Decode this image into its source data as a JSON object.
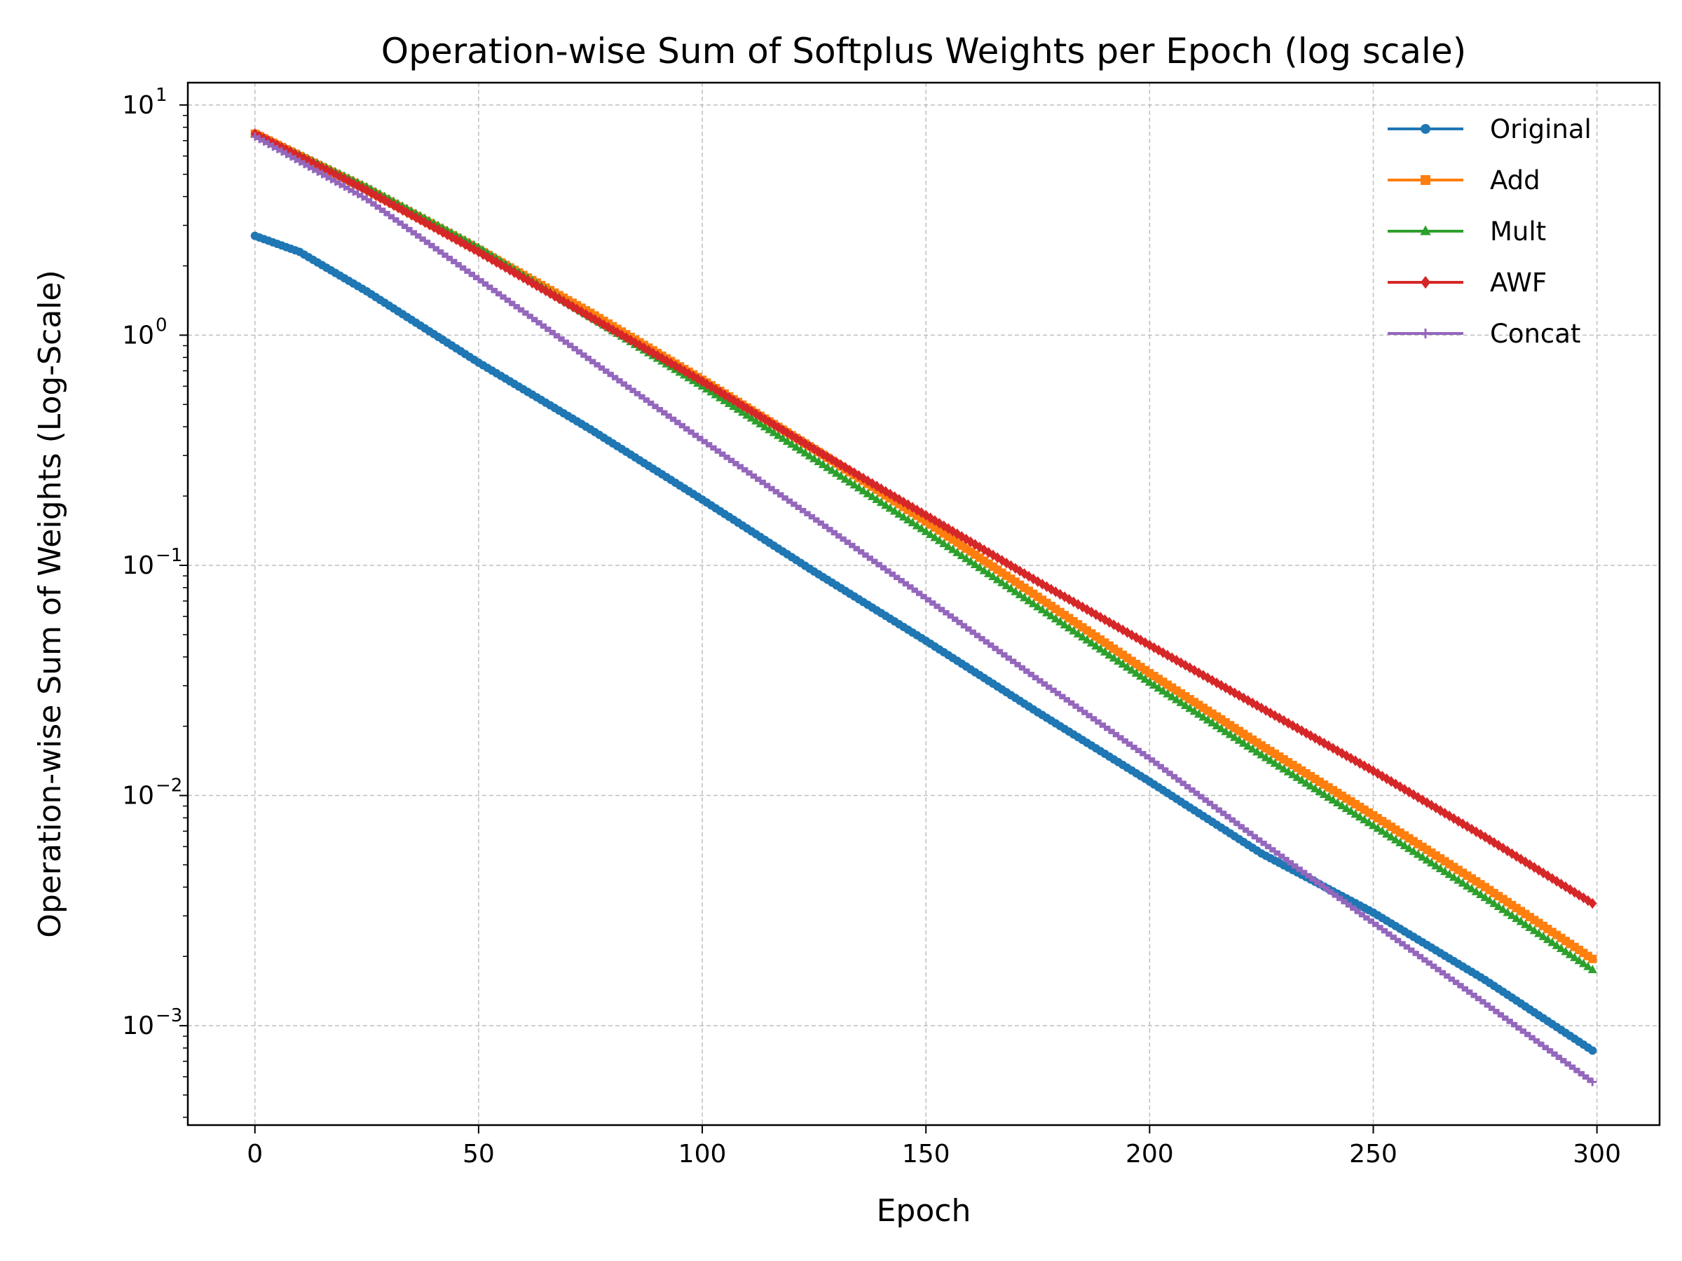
{
  "chart_data": {
    "type": "line",
    "title": "Operation-wise Sum of Softplus Weights per Epoch (log scale)",
    "xlabel": "Epoch",
    "ylabel": "Operation-wise Sum of Weights (Log-Scale)",
    "yscale": "log",
    "xlim": [
      -15,
      314
    ],
    "ylim": [
      0.00037,
      12.5
    ],
    "xticks": [
      0,
      50,
      100,
      150,
      200,
      250,
      300
    ],
    "yticks": [
      {
        "value": 0.001,
        "base": "10",
        "exp": "−3"
      },
      {
        "value": 0.01,
        "base": "10",
        "exp": "−2"
      },
      {
        "value": 0.1,
        "base": "10",
        "exp": "−1"
      },
      {
        "value": 1,
        "base": "10",
        "exp": "0"
      },
      {
        "value": 10,
        "base": "10",
        "exp": "1"
      }
    ],
    "grid": true,
    "legend_position": "top-right",
    "series": [
      {
        "name": "Original",
        "color": "#1f77b4",
        "marker": "circle",
        "points": [
          [
            0,
            2.7
          ],
          [
            10,
            2.3
          ],
          [
            25,
            1.55
          ],
          [
            50,
            0.76
          ],
          [
            75,
            0.39
          ],
          [
            100,
            0.193
          ],
          [
            125,
            0.094
          ],
          [
            150,
            0.047
          ],
          [
            175,
            0.023
          ],
          [
            200,
            0.0115
          ],
          [
            225,
            0.0056
          ],
          [
            250,
            0.0031
          ],
          [
            275,
            0.00158
          ],
          [
            299,
            0.00078
          ]
        ]
      },
      {
        "name": "Add",
        "color": "#ff7f0e",
        "marker": "square",
        "points": [
          [
            0,
            7.5
          ],
          [
            25,
            4.3
          ],
          [
            50,
            2.35
          ],
          [
            75,
            1.25
          ],
          [
            100,
            0.64
          ],
          [
            125,
            0.32
          ],
          [
            150,
            0.155
          ],
          [
            175,
            0.073
          ],
          [
            200,
            0.034
          ],
          [
            225,
            0.0165
          ],
          [
            250,
            0.0082
          ],
          [
            275,
            0.004
          ],
          [
            299,
            0.00195
          ]
        ]
      },
      {
        "name": "Mult",
        "color": "#2ca02c",
        "marker": "triangle",
        "points": [
          [
            0,
            7.5
          ],
          [
            25,
            4.4
          ],
          [
            50,
            2.4
          ],
          [
            75,
            1.2
          ],
          [
            100,
            0.6
          ],
          [
            125,
            0.29
          ],
          [
            150,
            0.14
          ],
          [
            175,
            0.066
          ],
          [
            200,
            0.031
          ],
          [
            225,
            0.015
          ],
          [
            250,
            0.0074
          ],
          [
            275,
            0.0036
          ],
          [
            299,
            0.00175
          ]
        ]
      },
      {
        "name": "AWF",
        "color": "#d62728",
        "marker": "diamond",
        "points": [
          [
            0,
            7.5
          ],
          [
            25,
            4.25
          ],
          [
            50,
            2.3
          ],
          [
            75,
            1.2
          ],
          [
            100,
            0.63
          ],
          [
            125,
            0.32
          ],
          [
            150,
            0.165
          ],
          [
            175,
            0.085
          ],
          [
            200,
            0.045
          ],
          [
            225,
            0.024
          ],
          [
            250,
            0.0128
          ],
          [
            275,
            0.0066
          ],
          [
            299,
            0.0034
          ]
        ]
      },
      {
        "name": "Concat",
        "color": "#9467bd",
        "marker": "plus",
        "points": [
          [
            0,
            7.3
          ],
          [
            25,
            3.9
          ],
          [
            50,
            1.75
          ],
          [
            75,
            0.78
          ],
          [
            100,
            0.35
          ],
          [
            125,
            0.16
          ],
          [
            150,
            0.072
          ],
          [
            175,
            0.032
          ],
          [
            200,
            0.0145
          ],
          [
            225,
            0.0063
          ],
          [
            250,
            0.0028
          ],
          [
            275,
            0.00125
          ],
          [
            299,
            0.00057
          ]
        ]
      }
    ]
  }
}
